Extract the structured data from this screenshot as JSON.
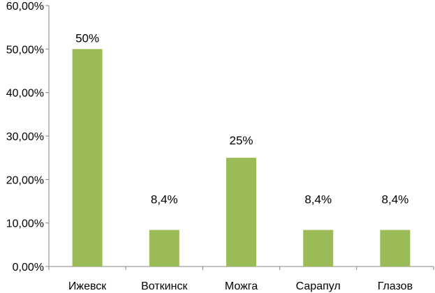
{
  "chart_data": {
    "type": "bar",
    "title": "",
    "xlabel": "",
    "ylabel": "",
    "categories": [
      "Ижевск",
      "Воткинск",
      "Можга",
      "Сарапул",
      "Глазов"
    ],
    "values": [
      50,
      8.4,
      25,
      8.4,
      8.4
    ],
    "data_labels": [
      "50%",
      "8,4%",
      "25%",
      "8,4%",
      "8,4%"
    ],
    "ylim": [
      0,
      60
    ],
    "yticks": [
      0,
      10,
      20,
      30,
      40,
      50,
      60
    ],
    "ytick_labels": [
      "0,00%",
      "10,00%",
      "20,00%",
      "30,00%",
      "40,00%",
      "50,00%",
      "60,00%"
    ],
    "grid": false,
    "legend": "none",
    "bar_color": "#9BBB59",
    "axis_color": "#868686"
  }
}
